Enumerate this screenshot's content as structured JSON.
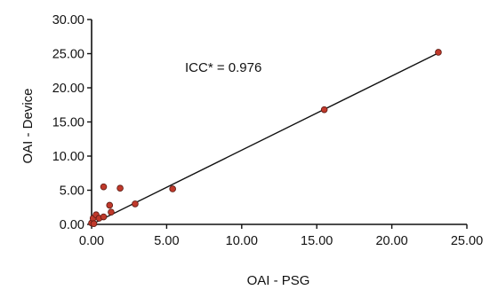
{
  "chart_data": {
    "type": "scatter",
    "title": "",
    "xlabel": "OAI - PSG",
    "ylabel": "OAI - Device",
    "xlim": [
      0,
      25
    ],
    "ylim": [
      0,
      30
    ],
    "x_ticks": [
      "0.00",
      "5.00",
      "10.00",
      "15.00",
      "20.00",
      "25.00"
    ],
    "y_ticks": [
      "0.00",
      "5.00",
      "10.00",
      "15.00",
      "20.00",
      "25.00",
      "30.00"
    ],
    "grid": false,
    "annotation": "ICC* = 0.976",
    "fit_line": {
      "x": [
        0,
        23.1
      ],
      "y": [
        0.0,
        25.1
      ]
    },
    "marker_color": "#c0392b",
    "points": [
      {
        "x": 0.0,
        "y": 0.2
      },
      {
        "x": 0.1,
        "y": 0.9
      },
      {
        "x": 0.15,
        "y": 0.1
      },
      {
        "x": 0.3,
        "y": 1.4
      },
      {
        "x": 0.5,
        "y": 0.9
      },
      {
        "x": 0.8,
        "y": 1.1
      },
      {
        "x": 0.8,
        "y": 5.5
      },
      {
        "x": 1.2,
        "y": 2.8
      },
      {
        "x": 1.3,
        "y": 1.8
      },
      {
        "x": 1.9,
        "y": 5.3
      },
      {
        "x": 2.9,
        "y": 3.0
      },
      {
        "x": 5.4,
        "y": 5.2
      },
      {
        "x": 15.5,
        "y": 16.8
      },
      {
        "x": 23.1,
        "y": 25.2
      }
    ]
  }
}
